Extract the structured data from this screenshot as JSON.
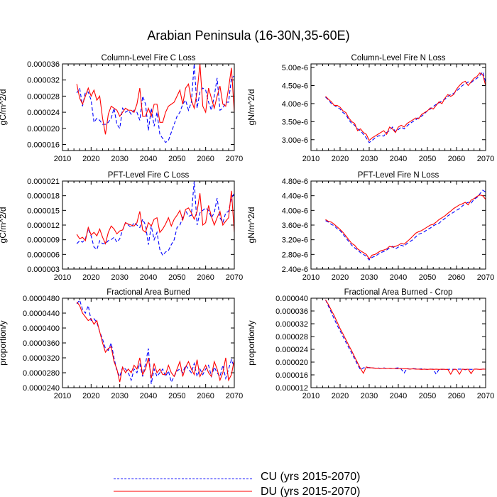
{
  "title": "Arabian Peninsula (16-30N,35-60E)",
  "colors": {
    "CU": "#0000ff",
    "DU": "#ff0000",
    "axis": "#000000"
  },
  "legend": [
    {
      "key": "CU",
      "label": "CU (yrs 2015-2070)",
      "style": "dashed"
    },
    {
      "key": "DU",
      "label": "DU (yrs 2015-2070)",
      "style": "solid"
    }
  ],
  "chart_data": [
    {
      "type": "line",
      "title": "Column-Level Fire C Loss",
      "ylabel": "gC/m^2/d",
      "xlim": [
        2010,
        2070
      ],
      "xticks": [
        "2010",
        "2020",
        "2030",
        "2040",
        "2050",
        "2060",
        "2070"
      ],
      "ylim": [
        1.45e-05,
        3.6e-05
      ],
      "yticks": [
        1.6e-05,
        2e-05,
        2.4e-05,
        2.8e-05,
        3.2e-05,
        3.6e-05
      ],
      "ytick_labels": [
        "0.000016",
        "0.000020",
        "0.000024",
        "0.000028",
        "0.000032",
        "0.000036"
      ],
      "x_start": 2015,
      "series": [
        {
          "name": "CU",
          "values": [
            2.88e-05,
            3e-05,
            2.55e-05,
            2.9e-05,
            2.9e-05,
            2.7e-05,
            2.15e-05,
            2.25e-05,
            2.2e-05,
            2.1e-05,
            2.1e-05,
            2.15e-05,
            2.25e-05,
            2.5e-05,
            2.1e-05,
            2e-05,
            2.5e-05,
            2.4e-05,
            2.45e-05,
            2.35e-05,
            2.45e-05,
            2.4e-05,
            2.2e-05,
            2.8e-05,
            2.6e-05,
            1.95e-05,
            2.5e-05,
            2.05e-05,
            2.4e-05,
            1.85e-05,
            1.75e-05,
            1.65e-05,
            1.7e-05,
            1.9e-05,
            2.1e-05,
            2.3e-05,
            2.4e-05,
            2.6e-05,
            2.7e-05,
            2.45e-05,
            2.65e-05,
            3.6e-05,
            2.5e-05,
            2.9e-05,
            3e-05,
            2.95e-05,
            2.65e-05,
            2.45e-05,
            2.8e-05,
            3.25e-05,
            2.45e-05,
            2.5e-05,
            2.65e-05,
            2.65e-05,
            3.25e-05,
            3.3e-05
          ]
        },
        {
          "name": "DU",
          "values": [
            3.1e-05,
            2.75e-05,
            2.6e-05,
            2.8e-05,
            3e-05,
            2.8e-05,
            2.95e-05,
            2.7e-05,
            2.8e-05,
            2.25e-05,
            1.85e-05,
            2.35e-05,
            2.55e-05,
            2.5e-05,
            2.45e-05,
            2.3e-05,
            2.4e-05,
            2.5e-05,
            2.45e-05,
            2.45e-05,
            2.4e-05,
            2.6e-05,
            3e-05,
            2.3e-05,
            2.3e-05,
            2.5e-05,
            2.3e-05,
            2.6e-05,
            2.6e-05,
            2.15e-05,
            2.15e-05,
            2.4e-05,
            2.55e-05,
            2.6e-05,
            2.65e-05,
            2.8e-05,
            2.95e-05,
            2.6e-05,
            3e-05,
            3.1e-05,
            2.7e-05,
            2.5e-05,
            2.9e-05,
            3.6e-05,
            2.55e-05,
            2.4e-05,
            3e-05,
            2.75e-05,
            2.5e-05,
            2.8e-05,
            3.05e-05,
            2.6e-05,
            2.55e-05,
            3e-05,
            3.5e-05,
            2.4e-05
          ]
        }
      ]
    },
    {
      "type": "line",
      "title": "Column-Level Fire N Loss",
      "ylabel": "gN/m^2/d",
      "xlim": [
        2010,
        2070
      ],
      "xticks": [
        "2010",
        "2020",
        "2030",
        "2040",
        "2050",
        "2060",
        "2070"
      ],
      "ylim": [
        2.7e-06,
        5.1e-06
      ],
      "yticks": [
        3e-06,
        3.5e-06,
        4e-06,
        4.5e-06,
        5e-06
      ],
      "ytick_labels": [
        "3.00e-6",
        "3.50e-6",
        "4.00e-6",
        "4.50e-6",
        "5.00e-6"
      ],
      "x_start": 2015,
      "series": [
        {
          "name": "CU",
          "values": [
            4.18e-06,
            4.1e-06,
            4e-06,
            3.95e-06,
            3.9e-06,
            3.85e-06,
            3.75e-06,
            3.7e-06,
            3.55e-06,
            3.45e-06,
            3.4e-06,
            3.3e-06,
            3.25e-06,
            3.15e-06,
            3.05e-06,
            2.92e-06,
            2.98e-06,
            3.05e-06,
            3.1e-06,
            3.12e-06,
            3.1e-06,
            3.2e-06,
            3.25e-06,
            3.35e-06,
            3.22e-06,
            3.28e-06,
            3.35e-06,
            3.3e-06,
            3.38e-06,
            3.45e-06,
            3.5e-06,
            3.55e-06,
            3.62e-06,
            3.65e-06,
            3.72e-06,
            3.8e-06,
            3.85e-06,
            3.92e-06,
            3.98e-06,
            4.02e-06,
            4.08e-06,
            4.12e-06,
            4.2e-06,
            4.25e-06,
            4.28e-06,
            4.35e-06,
            4.42e-06,
            4.5e-06,
            4.55e-06,
            4.6e-06,
            4.58e-06,
            4.65e-06,
            4.7e-06,
            4.78e-06,
            4.88e-06,
            4.6e-06
          ]
        },
        {
          "name": "DU",
          "values": [
            4.2e-06,
            4.12e-06,
            4.05e-06,
            3.95e-06,
            3.95e-06,
            3.9e-06,
            3.8e-06,
            3.75e-06,
            3.6e-06,
            3.5e-06,
            3.45e-06,
            3.25e-06,
            3.3e-06,
            3.2e-06,
            3.15e-06,
            2.98e-06,
            3.05e-06,
            3.1e-06,
            3.15e-06,
            3.2e-06,
            3.25e-06,
            3.15e-06,
            3.35e-06,
            3.3e-06,
            3.2e-06,
            3.35e-06,
            3.4e-06,
            3.35e-06,
            3.45e-06,
            3.5e-06,
            3.55e-06,
            3.6e-06,
            3.58e-06,
            3.7e-06,
            3.75e-06,
            3.8e-06,
            3.88e-06,
            3.85e-06,
            3.95e-06,
            4.05e-06,
            4e-06,
            4.15e-06,
            4.25e-06,
            4.2e-06,
            4.25e-06,
            4.4e-06,
            4.5e-06,
            4.58e-06,
            4.62e-06,
            4.5e-06,
            4.6e-06,
            4.7e-06,
            4.75e-06,
            4.85e-06,
            4.8e-06,
            4.5e-06
          ]
        }
      ]
    },
    {
      "type": "line",
      "title": "PFT-Level Fire C Loss",
      "ylabel": "gC/m^2/d",
      "xlim": [
        2010,
        2070
      ],
      "xticks": [
        "2010",
        "2020",
        "2030",
        "2040",
        "2050",
        "2060",
        "2070"
      ],
      "ylim": [
        3e-06,
        2.1e-05
      ],
      "yticks": [
        3e-06,
        6e-06,
        9e-06,
        1.2e-05,
        1.5e-05,
        1.8e-05,
        2.1e-05
      ],
      "ytick_labels": [
        "0.000003",
        "0.000006",
        "0.000009",
        "0.000012",
        "0.000015",
        "0.000018",
        "0.000021"
      ],
      "x_start": 2015,
      "series": [
        {
          "name": "CU",
          "values": [
            8.2e-06,
            8.8e-06,
            8.5e-06,
            9.2e-06,
            1.12e-05,
            9.8e-06,
            7.5e-06,
            7e-06,
            8.8e-06,
            8.2e-06,
            8.2e-06,
            8.8e-06,
            9e-06,
            9.5e-06,
            8.5e-06,
            9.2e-06,
            1.1e-05,
            1.25e-05,
            1.2e-05,
            1.15e-05,
            1.25e-05,
            1.2e-05,
            1.15e-05,
            1.32e-05,
            1.2e-05,
            8e-06,
            1.18e-05,
            9e-06,
            1.05e-05,
            7e-06,
            5.8e-06,
            6.5e-06,
            6.8e-06,
            8e-06,
            9e-06,
            1.15e-05,
            1.2e-05,
            1.35e-05,
            1.5e-05,
            1.38e-05,
            1.4e-05,
            2.1e-05,
            1.2e-05,
            1.45e-05,
            1.5e-05,
            1.55e-05,
            1.5e-05,
            1.35e-05,
            1.45e-05,
            1.75e-05,
            1.35e-05,
            1.25e-05,
            1.45e-05,
            1.48e-05,
            1.75e-05,
            1.85e-05
          ]
        },
        {
          "name": "DU",
          "values": [
            1.01e-05,
            9.2e-06,
            9.5e-06,
            8.8e-06,
            1.15e-05,
            1e-05,
            1.05e-05,
            9.8e-06,
            1.12e-05,
            9.5e-06,
            8.2e-06,
            1.05e-05,
            1.18e-05,
            1.12e-05,
            1.02e-05,
            1.08e-05,
            1.1e-05,
            1.25e-05,
            1.22e-05,
            1.2e-05,
            1.18e-05,
            1.25e-05,
            1.48e-05,
            1.1e-05,
            1.05e-05,
            1.25e-05,
            1.18e-05,
            1.32e-05,
            1.35e-05,
            1.05e-05,
            1.12e-05,
            1.22e-05,
            1.35e-05,
            1.18e-05,
            1.32e-05,
            1.4e-05,
            1.5e-05,
            1.3e-05,
            1.52e-05,
            1.55e-05,
            1.45e-05,
            1.32e-05,
            1.48e-05,
            1.85e-05,
            1.2e-05,
            1.25e-05,
            1.6e-05,
            1.38e-05,
            1.2e-05,
            1.35e-05,
            1.48e-05,
            1.2e-05,
            1.28e-05,
            1.35e-05,
            1.9e-05,
            1.05e-05
          ]
        }
      ]
    },
    {
      "type": "line",
      "title": "PFT-Level Fire N Loss",
      "ylabel": "gN/m^2/d",
      "xlim": [
        2010,
        2070
      ],
      "xticks": [
        "2010",
        "2020",
        "2030",
        "2040",
        "2050",
        "2060",
        "2070"
      ],
      "ylim": [
        2.4e-06,
        4.8e-06
      ],
      "yticks": [
        2.4e-06,
        2.8e-06,
        3.2e-06,
        3.6e-06,
        4e-06,
        4.4e-06,
        4.8e-06
      ],
      "ytick_labels": [
        "2.40e-6",
        "2.80e-6",
        "3.20e-6",
        "3.60e-6",
        "4.00e-6",
        "4.40e-6",
        "4.80e-6"
      ],
      "x_start": 2015,
      "series": [
        {
          "name": "CU",
          "values": [
            3.72e-06,
            3.68e-06,
            3.62e-06,
            3.58e-06,
            3.5e-06,
            3.45e-06,
            3.35e-06,
            3.25e-06,
            3.15e-06,
            3.05e-06,
            2.98e-06,
            2.92e-06,
            2.85e-06,
            2.8e-06,
            2.75e-06,
            2.65e-06,
            2.72e-06,
            2.75e-06,
            2.8e-06,
            2.85e-06,
            2.88e-06,
            2.92e-06,
            2.98e-06,
            3.02e-06,
            2.95e-06,
            3e-06,
            3.05e-06,
            3.02e-06,
            3.1e-06,
            3.15e-06,
            3.2e-06,
            3.28e-06,
            3.35e-06,
            3.38e-06,
            3.42e-06,
            3.48e-06,
            3.52e-06,
            3.58e-06,
            3.62e-06,
            3.65e-06,
            3.72e-06,
            3.78e-06,
            3.85e-06,
            3.9e-06,
            3.95e-06,
            4e-06,
            4.05e-06,
            4.12e-06,
            4.18e-06,
            4.22e-06,
            4.2e-06,
            4.3e-06,
            4.35e-06,
            4.45e-06,
            4.55e-06,
            4.5e-06
          ]
        },
        {
          "name": "DU",
          "values": [
            3.75e-06,
            3.7e-06,
            3.68e-06,
            3.62e-06,
            3.55e-06,
            3.48e-06,
            3.4e-06,
            3.3e-06,
            3.2e-06,
            3.1e-06,
            3.05e-06,
            2.95e-06,
            2.9e-06,
            2.85e-06,
            2.8e-06,
            2.68e-06,
            2.78e-06,
            2.8e-06,
            2.85e-06,
            2.9e-06,
            2.92e-06,
            2.95e-06,
            3.02e-06,
            3e-06,
            3.02e-06,
            3.05e-06,
            3.1e-06,
            3.08e-06,
            3.15e-06,
            3.22e-06,
            3.3e-06,
            3.38e-06,
            3.42e-06,
            3.45e-06,
            3.5e-06,
            3.55e-06,
            3.6e-06,
            3.62e-06,
            3.68e-06,
            3.75e-06,
            3.8e-06,
            3.85e-06,
            3.92e-06,
            3.98e-06,
            4.05e-06,
            4.1e-06,
            4.15e-06,
            4.18e-06,
            4.22e-06,
            4.15e-06,
            4.28e-06,
            4.32e-06,
            4.38e-06,
            4.42e-06,
            4.4e-06,
            4.3e-06
          ]
        }
      ]
    },
    {
      "type": "line",
      "title": "Fractional Area Burned",
      "ylabel": "proportion/y",
      "xlim": [
        2010,
        2070
      ],
      "xticks": [
        "2010",
        "2020",
        "2030",
        "2040",
        "2050",
        "2060",
        "2070"
      ],
      "ylim": [
        2.4e-05,
        4.8e-05
      ],
      "yticks": [
        2.4e-05,
        2.8e-05,
        3.2e-05,
        3.6e-05,
        4e-05,
        4.4e-05,
        4.8e-05
      ],
      "ytick_labels": [
        "0.0000240",
        "0.0000280",
        "0.0000320",
        "0.0000360",
        "0.0000400",
        "0.0000440",
        "0.0000480"
      ],
      "x_start": 2015,
      "series": [
        {
          "name": "CU",
          "values": [
            4.65e-05,
            4.75e-05,
            4.5e-05,
            4.4e-05,
            4.6e-05,
            4.2e-05,
            4.25e-05,
            4.15e-05,
            3.9e-05,
            3.7e-05,
            3.45e-05,
            3.4e-05,
            3.6e-05,
            3.2e-05,
            2.85e-05,
            2.7e-05,
            2.95e-05,
            2.9e-05,
            2.8e-05,
            2.6e-05,
            2.9e-05,
            2.8e-05,
            3.05e-05,
            2.7e-05,
            3.05e-05,
            3.45e-05,
            2.5e-05,
            2.9e-05,
            2.7e-05,
            2.8e-05,
            2.9e-05,
            2.7e-05,
            2.85e-05,
            2.55e-05,
            2.7e-05,
            2.85e-05,
            2.9e-05,
            2.8e-05,
            3e-05,
            2.9e-05,
            2.8e-05,
            3.05e-05,
            2.7e-05,
            2.9e-05,
            2.75e-05,
            2.9e-05,
            3e-05,
            2.7e-05,
            2.95e-05,
            2.8e-05,
            2.7e-05,
            3e-05,
            2.65e-05,
            2.9e-05,
            3.15e-05,
            2.95e-05
          ]
        },
        {
          "name": "DU",
          "values": [
            4.7e-05,
            4.6e-05,
            4.4e-05,
            4.3e-05,
            4.2e-05,
            4.25e-05,
            4.1e-05,
            4.2e-05,
            3.9e-05,
            3.6e-05,
            3.35e-05,
            3.45e-05,
            3.5e-05,
            3.1e-05,
            2.9e-05,
            2.55e-05,
            2.95e-05,
            2.8e-05,
            2.9e-05,
            2.8e-05,
            3e-05,
            2.9e-05,
            3.2e-05,
            2.75e-05,
            2.9e-05,
            3.2e-05,
            2.65e-05,
            3.05e-05,
            2.8e-05,
            2.9e-05,
            2.75e-05,
            2.75e-05,
            3e-05,
            2.8e-05,
            2.7e-05,
            2.9e-05,
            3.1e-05,
            2.7e-05,
            2.95e-05,
            3.1e-05,
            2.9e-05,
            2.75e-05,
            3.15e-05,
            2.7e-05,
            2.85e-05,
            3e-05,
            2.8e-05,
            2.7e-05,
            3.1e-05,
            2.9e-05,
            2.6e-05,
            2.8e-05,
            3.2e-05,
            2.6e-05,
            2.75e-05,
            3.15e-05
          ]
        }
      ]
    },
    {
      "type": "line",
      "title": "Fractional Area Burned - Crop",
      "ylabel": "proportion/y",
      "xlim": [
        2010,
        2070
      ],
      "xticks": [
        "2010",
        "2020",
        "2030",
        "2040",
        "2050",
        "2060",
        "2070"
      ],
      "ylim": [
        1.2e-05,
        4e-05
      ],
      "yticks": [
        1.2e-05,
        1.6e-05,
        2e-05,
        2.4e-05,
        2.8e-05,
        3.2e-05,
        3.6e-05,
        4e-05
      ],
      "ytick_labels": [
        "0.000012",
        "0.000016",
        "0.000020",
        "0.000024",
        "0.000028",
        "0.000032",
        "0.000036",
        "0.000040"
      ],
      "x_start": 2015,
      "series": [
        {
          "name": "CU",
          "values": [
            3.95e-05,
            3.75e-05,
            3.55e-05,
            3.35e-05,
            3.15e-05,
            2.98e-05,
            2.8e-05,
            2.62e-05,
            2.45e-05,
            2.28e-05,
            2.1e-05,
            1.92e-05,
            1.76e-05,
            1.82e-05,
            1.82e-05,
            1.83e-05,
            1.82e-05,
            1.81e-05,
            1.82e-05,
            1.8e-05,
            1.82e-05,
            1.8e-05,
            1.81e-05,
            1.8e-05,
            1.81e-05,
            1.82e-05,
            1.78e-05,
            1.66e-05,
            1.8e-05,
            1.78e-05,
            1.8e-05,
            1.79e-05,
            1.78e-05,
            1.79e-05,
            1.78e-05,
            1.77e-05,
            1.78e-05,
            1.78e-05,
            1.62e-05,
            1.78e-05,
            1.77e-05,
            1.78e-05,
            1.77e-05,
            1.78e-05,
            1.77e-05,
            1.78e-05,
            1.78e-05,
            1.78e-05,
            1.76e-05,
            1.78e-05,
            1.77e-05,
            1.78e-05,
            1.78e-05,
            1.77e-05,
            1.78e-05,
            1.79e-05
          ]
        },
        {
          "name": "DU",
          "values": [
            3.95e-05,
            3.8e-05,
            3.62e-05,
            3.45e-05,
            3.25e-05,
            3.05e-05,
            2.88e-05,
            2.7e-05,
            2.52e-05,
            2.35e-05,
            2.16e-05,
            1.98e-05,
            1.8e-05,
            1.65e-05,
            1.85e-05,
            1.82e-05,
            1.82e-05,
            1.81e-05,
            1.81e-05,
            1.8e-05,
            1.81e-05,
            1.8e-05,
            1.81e-05,
            1.8e-05,
            1.8e-05,
            1.79e-05,
            1.8e-05,
            1.79e-05,
            1.79e-05,
            1.78e-05,
            1.79e-05,
            1.78e-05,
            1.78e-05,
            1.77e-05,
            1.78e-05,
            1.77e-05,
            1.78e-05,
            1.77e-05,
            1.78e-05,
            1.77e-05,
            1.78e-05,
            1.77e-05,
            1.77e-05,
            1.62e-05,
            1.78e-05,
            1.77e-05,
            1.62e-05,
            1.78e-05,
            1.77e-05,
            1.78e-05,
            1.64e-05,
            1.78e-05,
            1.78e-05,
            1.77e-05,
            1.78e-05,
            1.78e-05
          ]
        }
      ]
    }
  ]
}
